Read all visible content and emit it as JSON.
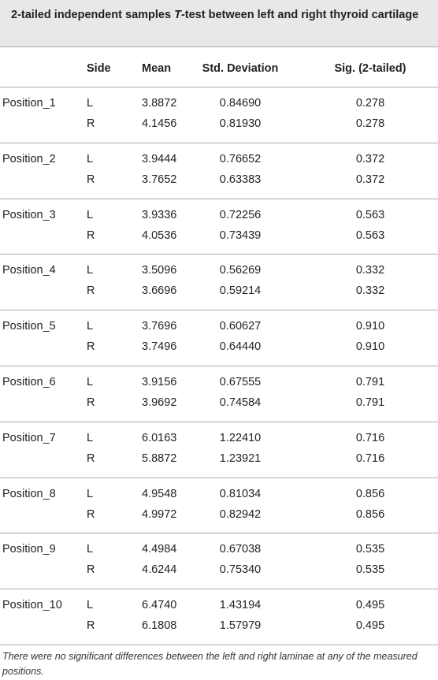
{
  "title": {
    "before": "2-tailed independent samples ",
    "italic": "T",
    "after": "-test between left and right thyroid cartilage"
  },
  "table": {
    "header": [
      "Side",
      "Mean",
      "Std. Deviation",
      "Sig. (2-tailed)"
    ],
    "groups": [
      {
        "position": "Position_1",
        "rows": [
          [
            "L",
            "3.8872",
            "0.84690",
            "0.278"
          ],
          [
            "R",
            "4.1456",
            "0.81930",
            "0.278"
          ]
        ]
      },
      {
        "position": "Position_2",
        "rows": [
          [
            "L",
            "3.9444",
            "0.76652",
            "0.372"
          ],
          [
            "R",
            "3.7652",
            "0.63383",
            "0.372"
          ]
        ]
      },
      {
        "position": "Position_3",
        "rows": [
          [
            "L",
            "3.9336",
            "0.72256",
            "0.563"
          ],
          [
            "R",
            "4.0536",
            "0.73439",
            "0.563"
          ]
        ]
      },
      {
        "position": "Position_4",
        "rows": [
          [
            "L",
            "3.5096",
            "0.56269",
            "0.332"
          ],
          [
            "R",
            "3.6696",
            "0.59214",
            "0.332"
          ]
        ]
      },
      {
        "position": "Position_5",
        "rows": [
          [
            "L",
            "3.7696",
            "0.60627",
            "0.910"
          ],
          [
            "R",
            "3.7496",
            "0.64440",
            "0.910"
          ]
        ]
      },
      {
        "position": "Position_6",
        "rows": [
          [
            "L",
            "3.9156",
            "0.67555",
            "0.791"
          ],
          [
            "R",
            "3.9692",
            "0.74584",
            "0.791"
          ]
        ]
      },
      {
        "position": "Position_7",
        "rows": [
          [
            "L",
            "6.0163",
            "1.22410",
            "0.716"
          ],
          [
            "R",
            "5.8872",
            "1.23921",
            "0.716"
          ]
        ]
      },
      {
        "position": "Position_8",
        "rows": [
          [
            "L",
            "4.9548",
            "0.81034",
            "0.856"
          ],
          [
            "R",
            "4.9972",
            "0.82942",
            "0.856"
          ]
        ]
      },
      {
        "position": "Position_9",
        "rows": [
          [
            "L",
            "4.4984",
            "0.67038",
            "0.535"
          ],
          [
            "R",
            "4.6244",
            "0.75340",
            "0.535"
          ]
        ]
      },
      {
        "position": "Position_10",
        "rows": [
          [
            "L",
            "6.4740",
            "1.43194",
            "0.495"
          ],
          [
            "R",
            "6.1808",
            "1.57979",
            "0.495"
          ]
        ]
      }
    ]
  },
  "footnote": "There were no significant differences between the left and right laminae at any of the measured positions."
}
